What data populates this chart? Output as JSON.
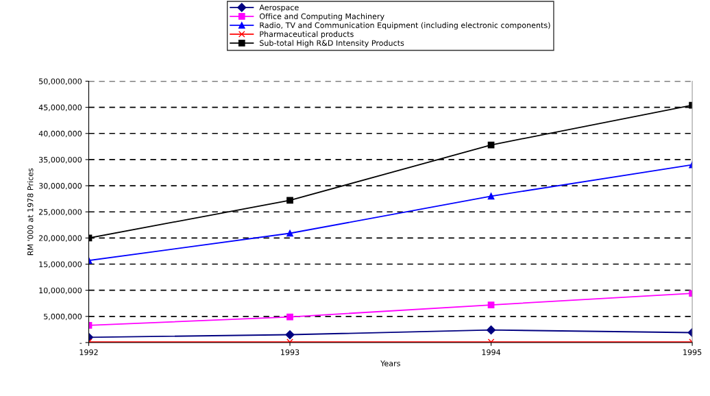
{
  "chart_data": {
    "type": "line",
    "xlabel": "Years",
    "ylabel": "RM '000 at 1978 Prices",
    "x": [
      1992,
      1993,
      1994,
      1995
    ],
    "xlim": [
      1992,
      1995
    ],
    "xticks": [
      1992,
      1993,
      1994,
      1995
    ],
    "ylim": [
      0,
      50000000
    ],
    "yticks": [
      {
        "value": 0,
        "label": "-"
      },
      {
        "value": 5000000,
        "label": "5,000,000"
      },
      {
        "value": 10000000,
        "label": "10,000,000"
      },
      {
        "value": 15000000,
        "label": "15,000,000"
      },
      {
        "value": 20000000,
        "label": "20,000,000"
      },
      {
        "value": 25000000,
        "label": "25,000,000"
      },
      {
        "value": 30000000,
        "label": "30,000,000"
      },
      {
        "value": 35000000,
        "label": "35,000,000"
      },
      {
        "value": 40000000,
        "label": "40,000,000"
      },
      {
        "value": 45000000,
        "label": "45,000,000"
      },
      {
        "value": 50000000,
        "label": "50,000,000"
      }
    ],
    "grid": "y",
    "legend": "top",
    "series": [
      {
        "name": "Aerospace",
        "color": "#000080",
        "marker": "diamond",
        "values": [
          1000000,
          1500000,
          2400000,
          1900000
        ]
      },
      {
        "name": "Office and Computing Machinery",
        "color": "#ff00ff",
        "marker": "square",
        "values": [
          3300000,
          4900000,
          7200000,
          9400000
        ]
      },
      {
        "name": "Radio, TV and Communication Equipment (including electronic components)",
        "color": "#0000ff",
        "marker": "triangle",
        "values": [
          15700000,
          20900000,
          28000000,
          34000000
        ]
      },
      {
        "name": "Pharmaceutical products",
        "color": "#ff0000",
        "marker": "cross",
        "values": [
          100000,
          100000,
          100000,
          100000
        ]
      },
      {
        "name": "Sub-total High R&D Intensity Products",
        "color": "#000000",
        "marker": "square",
        "values": [
          20000000,
          27200000,
          37800000,
          45400000
        ]
      }
    ]
  }
}
